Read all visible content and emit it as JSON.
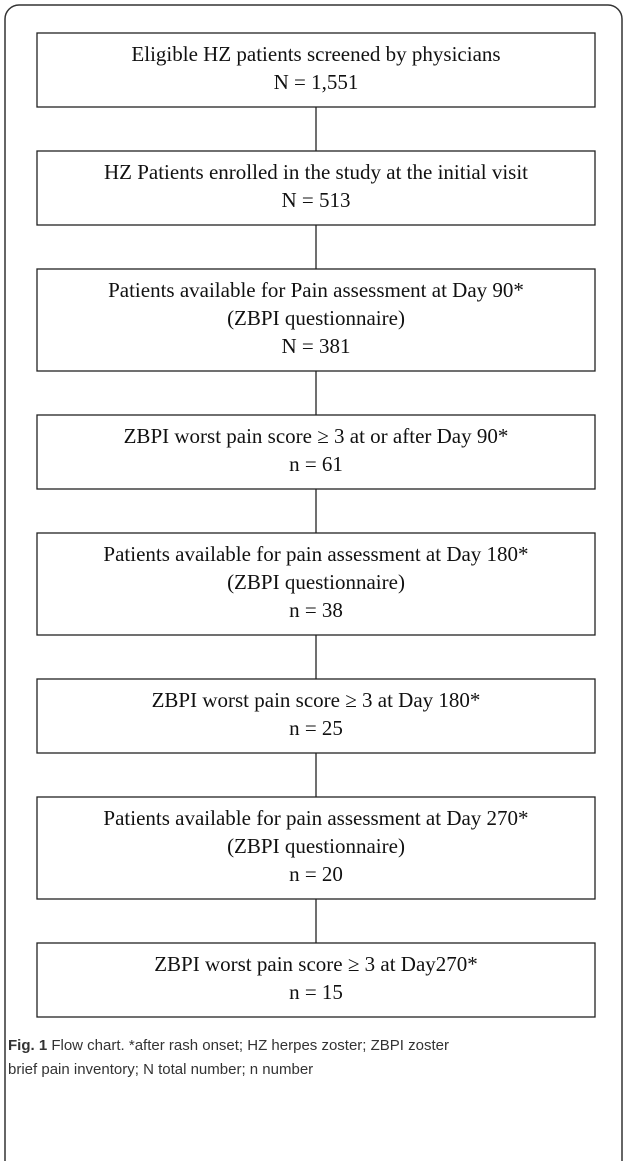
{
  "nodes": [
    {
      "lines": [
        "Eligible HZ patients screened by physicians",
        "N = 1,551"
      ]
    },
    {
      "lines": [
        "HZ Patients enrolled in the study at the initial visit",
        "N = 513"
      ]
    },
    {
      "lines": [
        "Patients available for Pain assessment at Day 90*",
        "(ZBPI questionnaire)",
        "N = 381"
      ]
    },
    {
      "lines": [
        "ZBPI worst pain score ≥ 3 at or after Day 90*",
        "n = 61"
      ]
    },
    {
      "lines": [
        "Patients available for pain assessment at Day 180*",
        "(ZBPI questionnaire)",
        "n = 38"
      ]
    },
    {
      "lines": [
        "ZBPI worst pain score ≥ 3 at Day 180*",
        "n = 25"
      ]
    },
    {
      "lines": [
        "Patients available for pain assessment at Day 270*",
        "(ZBPI questionnaire)",
        "n = 20"
      ]
    },
    {
      "lines": [
        "ZBPI worst pain score ≥ 3 at Day270*",
        "n = 15"
      ]
    }
  ],
  "caption": {
    "label": "Fig. 1",
    "lines": [
      "Flow chart. *after rash onset; HZ herpes zoster; ZBPI zoster",
      "brief pain inventory; N total number; n number"
    ]
  }
}
